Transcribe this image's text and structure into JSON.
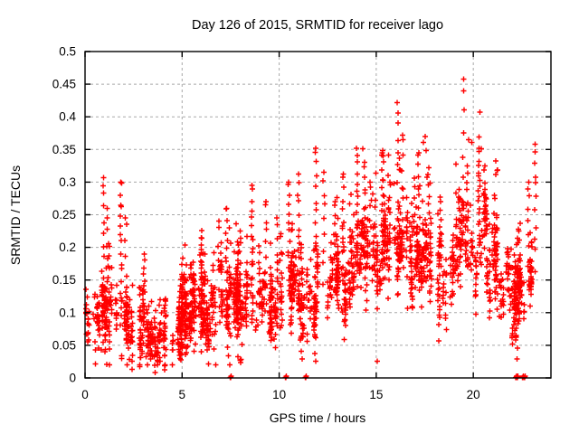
{
  "chart_data": {
    "type": "scatter",
    "title": "Day 126 of 2015, SRMTID for receiver lago",
    "xlabel": "GPS time / hours",
    "ylabel": "SRMTID / TECUs",
    "xlim": [
      0,
      24
    ],
    "ylim": [
      0,
      0.5
    ],
    "xticks": [
      0,
      5,
      10,
      15,
      20
    ],
    "xtick_labels": [
      "0",
      "5",
      "10",
      "15",
      "20"
    ],
    "yticks": [
      0,
      0.05,
      0.1,
      0.15,
      0.2,
      0.25,
      0.3,
      0.35,
      0.4,
      0.45,
      0.5
    ],
    "ytick_labels": [
      "0",
      "0.05",
      "0.1",
      "0.15",
      "0.2",
      "0.25",
      "0.3",
      "0.35",
      "0.4",
      "0.45",
      "0.5"
    ],
    "grid": true,
    "legend": "none",
    "marker": {
      "shape": "plus",
      "color": "#ff0000",
      "size": 7
    },
    "grid_color": "#a8a8a8",
    "frame_color": "#000000",
    "n_points_approx": 2300,
    "x_data_range": [
      0,
      23.3
    ],
    "y_data_max": 0.458,
    "envelope_mode_by_hour": [
      [
        0,
        0.085
      ],
      [
        0.5,
        0.09
      ],
      [
        1,
        0.105
      ],
      [
        1.5,
        0.085
      ],
      [
        2,
        0.08
      ],
      [
        2.5,
        0.068
      ],
      [
        3,
        0.075
      ],
      [
        3.5,
        0.062
      ],
      [
        4,
        0.052
      ],
      [
        4.5,
        0.068
      ],
      [
        5,
        0.09
      ],
      [
        5.5,
        0.105
      ],
      [
        6,
        0.1
      ],
      [
        6.5,
        0.095
      ],
      [
        7,
        0.1
      ],
      [
        7.5,
        0.115
      ],
      [
        8,
        0.11
      ],
      [
        8.5,
        0.12
      ],
      [
        9,
        0.112
      ],
      [
        9.5,
        0.108
      ],
      [
        10,
        0.12
      ],
      [
        10.5,
        0.132
      ],
      [
        11,
        0.118
      ],
      [
        11.5,
        0.1
      ],
      [
        12,
        0.13
      ],
      [
        12.5,
        0.148
      ],
      [
        13,
        0.15
      ],
      [
        13.5,
        0.162
      ],
      [
        14,
        0.172
      ],
      [
        14.5,
        0.178
      ],
      [
        15,
        0.168
      ],
      [
        15.5,
        0.182
      ],
      [
        16,
        0.188
      ],
      [
        16.5,
        0.192
      ],
      [
        17,
        0.19
      ],
      [
        17.5,
        0.202
      ],
      [
        18,
        0.178
      ],
      [
        18.5,
        0.165
      ],
      [
        19,
        0.19
      ],
      [
        19.5,
        0.212
      ],
      [
        20,
        0.21
      ],
      [
        20.5,
        0.22
      ],
      [
        21,
        0.178
      ],
      [
        21.5,
        0.148
      ],
      [
        22,
        0.122
      ],
      [
        22.5,
        0.132
      ],
      [
        23,
        0.158
      ],
      [
        23.3,
        0.172
      ]
    ],
    "spikes_hour_peak_count": [
      [
        0.95,
        0.307,
        10
      ],
      [
        1.15,
        0.26,
        6
      ],
      [
        1.85,
        0.3,
        16
      ],
      [
        2.1,
        0.245,
        6
      ],
      [
        3.05,
        0.19,
        8
      ],
      [
        5.0,
        0.155,
        6
      ],
      [
        6.0,
        0.215,
        10
      ],
      [
        6.9,
        0.24,
        6
      ],
      [
        7.3,
        0.26,
        10
      ],
      [
        8.0,
        0.225,
        8
      ],
      [
        8.6,
        0.295,
        12
      ],
      [
        9.3,
        0.27,
        8
      ],
      [
        9.9,
        0.245,
        6
      ],
      [
        10.5,
        0.3,
        12
      ],
      [
        11.0,
        0.312,
        10
      ],
      [
        11.9,
        0.352,
        12
      ],
      [
        12.3,
        0.315,
        8
      ],
      [
        12.9,
        0.27,
        8
      ],
      [
        13.3,
        0.312,
        10
      ],
      [
        14.0,
        0.352,
        12
      ],
      [
        14.4,
        0.33,
        8
      ],
      [
        14.7,
        0.3,
        8
      ],
      [
        15.3,
        0.345,
        10
      ],
      [
        15.7,
        0.3,
        6
      ],
      [
        16.1,
        0.422,
        10
      ],
      [
        16.35,
        0.372,
        8
      ],
      [
        17.2,
        0.345,
        10
      ],
      [
        17.7,
        0.322,
        8
      ],
      [
        18.3,
        0.27,
        6
      ],
      [
        19.5,
        0.458,
        7
      ],
      [
        19.7,
        0.325,
        8
      ],
      [
        20.3,
        0.352,
        12
      ],
      [
        20.6,
        0.325,
        8
      ],
      [
        21.1,
        0.28,
        6
      ],
      [
        22.85,
        0.3,
        8
      ],
      [
        23.2,
        0.358,
        10
      ]
    ],
    "zero_marker_hours": [
      7.5,
      10.35,
      11.37,
      22.2,
      22.28,
      22.55,
      22.65
    ],
    "generation": {
      "seed": 1126,
      "columns": 240,
      "hour_min": 0,
      "hour_max": 23.3
    }
  }
}
